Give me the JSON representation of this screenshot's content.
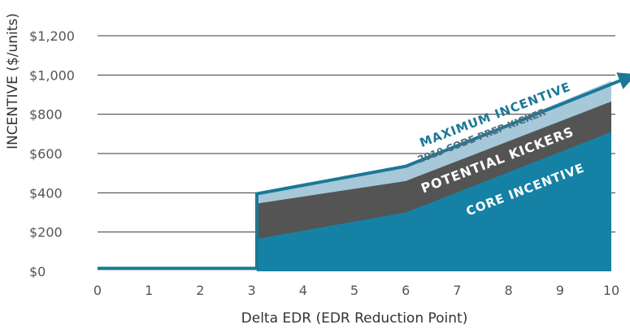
{
  "chart_data": {
    "type": "area",
    "xlabel": "Delta EDR (EDR Reduction Point)",
    "ylabel": "INCENTIVE ($/units)",
    "xlim": [
      0,
      10
    ],
    "ylim": [
      0,
      1200
    ],
    "x_ticks": [
      0,
      1,
      2,
      3,
      4,
      5,
      6,
      7,
      8,
      9,
      10
    ],
    "y_ticks": [
      0,
      200,
      400,
      600,
      800,
      1000,
      1200
    ],
    "y_tick_labels": [
      "$0",
      "$200",
      "$400",
      "$600",
      "$800",
      "$1,000",
      "$1,200"
    ],
    "grid": "horizontal",
    "series": [
      {
        "name": "CORE INCENTIVE",
        "color": "#1582a5",
        "points": [
          [
            3.1,
            165
          ],
          [
            6,
            300
          ],
          [
            10,
            710
          ]
        ]
      },
      {
        "name": "POTENTIAL KICKERS",
        "color": "#545454",
        "points": [
          [
            3.1,
            345
          ],
          [
            6,
            460
          ],
          [
            10,
            865
          ]
        ]
      },
      {
        "name": "2019 CODE PREP KICKER",
        "color": "#a6c8d9",
        "points": [
          [
            3.1,
            395
          ],
          [
            6,
            535
          ],
          [
            10,
            970
          ]
        ]
      }
    ],
    "maximum_line": {
      "name": "MAXIMUM INCENTIVE",
      "color": "#1b7896",
      "points": [
        [
          0,
          15
        ],
        [
          3.1,
          15
        ],
        [
          3.1,
          395
        ],
        [
          6,
          535
        ],
        [
          10.4,
          995
        ]
      ]
    }
  }
}
